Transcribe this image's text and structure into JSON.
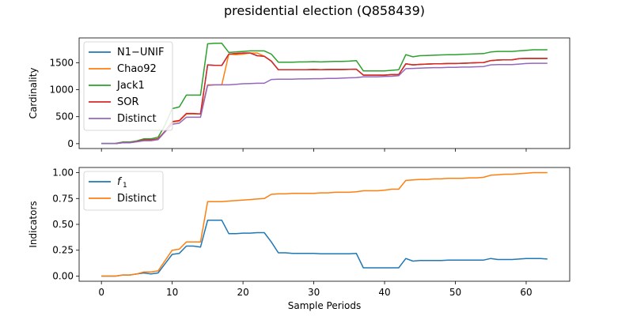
{
  "chart_data": [
    {
      "type": "line",
      "title": "presidential election (Q858439)",
      "xlabel": "",
      "ylabel": "Cardinality",
      "xlim": [
        -3.15,
        66.15
      ],
      "ylim": [
        -90,
        1960
      ],
      "x_ticks": [
        0,
        10,
        20,
        30,
        40,
        50,
        60
      ],
      "y_ticks": [
        0,
        500,
        1000,
        1500
      ],
      "legend_position": "top-left",
      "x": [
        0,
        1,
        2,
        3,
        4,
        5,
        6,
        7,
        8,
        9,
        10,
        11,
        12,
        13,
        14,
        15,
        16,
        17,
        18,
        19,
        20,
        21,
        22,
        23,
        24,
        25,
        26,
        27,
        28,
        29,
        30,
        31,
        32,
        33,
        34,
        35,
        36,
        37,
        38,
        39,
        40,
        41,
        42,
        43,
        44,
        45,
        46,
        47,
        48,
        49,
        50,
        51,
        52,
        53,
        54,
        55,
        56,
        57,
        58,
        59,
        60,
        61,
        62,
        63
      ],
      "series": [
        {
          "name": "N1−UNIF",
          "color": "#1f77b4",
          "values": [
            2,
            2,
            2,
            20,
            20,
            40,
            70,
            70,
            90,
            230,
            400,
            420,
            550,
            550,
            550,
            1460,
            1450,
            1450,
            1660,
            1670,
            1680,
            1680,
            1630,
            1620,
            1530,
            1370,
            1370,
            1370,
            1370,
            1370,
            1375,
            1370,
            1375,
            1375,
            1375,
            1378,
            1380,
            1270,
            1270,
            1270,
            1270,
            1280,
            1280,
            1480,
            1460,
            1470,
            1475,
            1480,
            1480,
            1485,
            1485,
            1490,
            1495,
            1500,
            1505,
            1540,
            1550,
            1555,
            1555,
            1575,
            1580,
            1580,
            1580,
            1580
          ]
        },
        {
          "name": "Chao92",
          "color": "#ff7f0e",
          "values": [
            2,
            2,
            2,
            20,
            20,
            40,
            70,
            70,
            90,
            230,
            400,
            420,
            550,
            550,
            550,
            1090,
            1090,
            1090,
            1660,
            1650,
            1660,
            1680,
            1680,
            1620,
            1530,
            1370,
            1370,
            1370,
            1370,
            1370,
            1375,
            1370,
            1375,
            1375,
            1375,
            1378,
            1380,
            1270,
            1270,
            1270,
            1270,
            1280,
            1280,
            1480,
            1460,
            1470,
            1475,
            1480,
            1480,
            1485,
            1485,
            1490,
            1495,
            1500,
            1505,
            1540,
            1550,
            1555,
            1555,
            1575,
            1580,
            1580,
            1580,
            1580
          ]
        },
        {
          "name": "Jack1",
          "color": "#2ca02c",
          "values": [
            5,
            5,
            5,
            30,
            30,
            50,
            90,
            90,
            120,
            350,
            650,
            680,
            900,
            900,
            900,
            1850,
            1860,
            1860,
            1690,
            1700,
            1710,
            1720,
            1720,
            1720,
            1660,
            1510,
            1510,
            1510,
            1515,
            1515,
            1520,
            1515,
            1520,
            1525,
            1525,
            1530,
            1540,
            1350,
            1350,
            1350,
            1350,
            1360,
            1370,
            1650,
            1610,
            1630,
            1635,
            1640,
            1645,
            1650,
            1650,
            1655,
            1660,
            1665,
            1670,
            1700,
            1710,
            1710,
            1710,
            1720,
            1730,
            1740,
            1740,
            1740
          ]
        },
        {
          "name": "SOR",
          "color": "#d62728",
          "values": [
            2,
            2,
            2,
            20,
            20,
            40,
            70,
            70,
            90,
            230,
            410,
            430,
            560,
            560,
            550,
            1460,
            1450,
            1450,
            1660,
            1670,
            1680,
            1680,
            1630,
            1620,
            1530,
            1370,
            1370,
            1370,
            1370,
            1370,
            1375,
            1370,
            1375,
            1375,
            1375,
            1378,
            1380,
            1270,
            1270,
            1270,
            1270,
            1280,
            1280,
            1480,
            1460,
            1470,
            1475,
            1480,
            1480,
            1485,
            1485,
            1490,
            1495,
            1500,
            1505,
            1540,
            1550,
            1555,
            1555,
            1575,
            1580,
            1580,
            1580,
            1580
          ]
        },
        {
          "name": "Distinct",
          "color": "#9467bd",
          "values": [
            2,
            2,
            2,
            15,
            15,
            35,
            55,
            55,
            75,
            220,
            360,
            380,
            490,
            490,
            490,
            1080,
            1090,
            1090,
            1090,
            1100,
            1110,
            1115,
            1120,
            1120,
            1190,
            1195,
            1195,
            1195,
            1200,
            1200,
            1205,
            1205,
            1210,
            1210,
            1215,
            1220,
            1225,
            1240,
            1240,
            1240,
            1245,
            1250,
            1260,
            1390,
            1395,
            1400,
            1405,
            1410,
            1410,
            1415,
            1415,
            1420,
            1420,
            1425,
            1430,
            1460,
            1465,
            1465,
            1465,
            1475,
            1485,
            1490,
            1490,
            1490
          ]
        }
      ]
    },
    {
      "type": "line",
      "title": "",
      "xlabel": "Sample Periods",
      "ylabel": "Indicators",
      "xlim": [
        -3.15,
        66.15
      ],
      "ylim": [
        -0.05,
        1.05
      ],
      "x_ticks": [
        0,
        10,
        20,
        30,
        40,
        50,
        60
      ],
      "y_ticks": [
        0.0,
        0.25,
        0.5,
        0.75,
        1.0
      ],
      "y_tick_labels": [
        "0.00",
        "0.25",
        "0.50",
        "0.75",
        "1.00"
      ],
      "legend_position": "top-left",
      "x": [
        0,
        1,
        2,
        3,
        4,
        5,
        6,
        7,
        8,
        9,
        10,
        11,
        12,
        13,
        14,
        15,
        16,
        17,
        18,
        19,
        20,
        21,
        22,
        23,
        24,
        25,
        26,
        27,
        28,
        29,
        30,
        31,
        32,
        33,
        34,
        35,
        36,
        37,
        38,
        39,
        40,
        41,
        42,
        43,
        44,
        45,
        46,
        47,
        48,
        49,
        50,
        51,
        52,
        53,
        54,
        55,
        56,
        57,
        58,
        59,
        60,
        61,
        62,
        63
      ],
      "series": [
        {
          "name": "f1",
          "display_main": "f",
          "display_sub": "1",
          "color": "#1f77b4",
          "values": [
            0.0,
            0.0,
            0.0,
            0.01,
            0.01,
            0.02,
            0.03,
            0.02,
            0.03,
            0.12,
            0.21,
            0.22,
            0.29,
            0.29,
            0.28,
            0.54,
            0.54,
            0.54,
            0.41,
            0.41,
            0.415,
            0.415,
            0.42,
            0.42,
            0.33,
            0.225,
            0.225,
            0.22,
            0.22,
            0.22,
            0.22,
            0.215,
            0.215,
            0.215,
            0.215,
            0.215,
            0.22,
            0.08,
            0.08,
            0.08,
            0.08,
            0.08,
            0.08,
            0.17,
            0.145,
            0.15,
            0.15,
            0.15,
            0.15,
            0.155,
            0.155,
            0.155,
            0.155,
            0.155,
            0.155,
            0.17,
            0.16,
            0.16,
            0.16,
            0.165,
            0.17,
            0.17,
            0.17,
            0.165
          ]
        },
        {
          "name": "Distinct",
          "color": "#ff7f0e",
          "values": [
            0.0,
            0.0,
            0.0,
            0.01,
            0.01,
            0.02,
            0.04,
            0.04,
            0.05,
            0.15,
            0.25,
            0.26,
            0.33,
            0.33,
            0.33,
            0.72,
            0.72,
            0.72,
            0.725,
            0.73,
            0.735,
            0.74,
            0.745,
            0.75,
            0.79,
            0.795,
            0.795,
            0.8,
            0.8,
            0.8,
            0.8,
            0.805,
            0.805,
            0.81,
            0.81,
            0.81,
            0.815,
            0.825,
            0.825,
            0.825,
            0.83,
            0.84,
            0.84,
            0.925,
            0.93,
            0.935,
            0.935,
            0.94,
            0.94,
            0.945,
            0.945,
            0.945,
            0.95,
            0.95,
            0.955,
            0.975,
            0.98,
            0.985,
            0.985,
            0.99,
            0.995,
            1.0,
            1.0,
            1.0
          ]
        }
      ]
    }
  ]
}
